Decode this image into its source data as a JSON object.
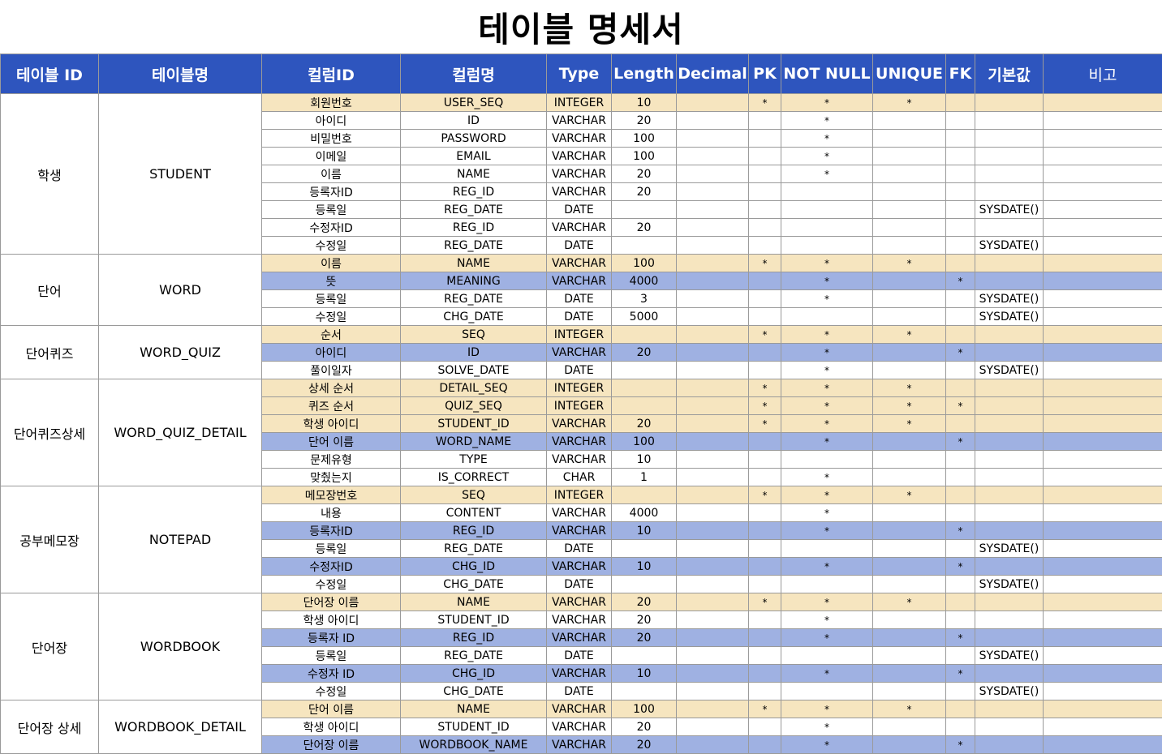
{
  "title": "테이블 명세서",
  "headers": {
    "table_id": "테이블 ID",
    "table_name": "테이블명",
    "column_id": "컬럼ID",
    "column_name": "컬럼명",
    "type": "Type",
    "length": "Length",
    "decimal": "Decimal",
    "pk": "PK",
    "not_null": "NOT NULL",
    "unique": "UNIQUE",
    "fk": "FK",
    "default": "기본값",
    "note": "비고"
  },
  "colors": {
    "header_bg": "#2e55be",
    "pk_row": "#f6e5bf",
    "fk_row": "#9fb1e2"
  },
  "tables": [
    {
      "table_id": "학생",
      "table_name": "STUDENT",
      "rows": [
        {
          "kind": "pk",
          "cid": "회원번호",
          "cname": "USER_SEQ",
          "type": "INTEGER",
          "length": "10",
          "decimal": "",
          "pk": "*",
          "nn": "*",
          "uq": "*",
          "fk": "",
          "def": "",
          "note": ""
        },
        {
          "kind": "plain",
          "cid": "아이디",
          "cname": "ID",
          "type": "VARCHAR",
          "length": "20",
          "decimal": "",
          "pk": "",
          "nn": "*",
          "uq": "",
          "fk": "",
          "def": "",
          "note": ""
        },
        {
          "kind": "plain",
          "cid": "비밀번호",
          "cname": "PASSWORD",
          "type": "VARCHAR",
          "length": "100",
          "decimal": "",
          "pk": "",
          "nn": "*",
          "uq": "",
          "fk": "",
          "def": "",
          "note": ""
        },
        {
          "kind": "plain",
          "cid": "이메일",
          "cname": "EMAIL",
          "type": "VARCHAR",
          "length": "100",
          "decimal": "",
          "pk": "",
          "nn": "*",
          "uq": "",
          "fk": "",
          "def": "",
          "note": ""
        },
        {
          "kind": "plain",
          "cid": "이름",
          "cname": "NAME",
          "type": "VARCHAR",
          "length": "20",
          "decimal": "",
          "pk": "",
          "nn": "*",
          "uq": "",
          "fk": "",
          "def": "",
          "note": ""
        },
        {
          "kind": "plain",
          "cid": "등록자ID",
          "cname": "REG_ID",
          "type": "VARCHAR",
          "length": "20",
          "decimal": "",
          "pk": "",
          "nn": "",
          "uq": "",
          "fk": "",
          "def": "",
          "note": ""
        },
        {
          "kind": "plain",
          "cid": "등록일",
          "cname": "REG_DATE",
          "type": "DATE",
          "length": "",
          "decimal": "",
          "pk": "",
          "nn": "",
          "uq": "",
          "fk": "",
          "def": "SYSDATE()",
          "note": ""
        },
        {
          "kind": "plain",
          "cid": "수정자ID",
          "cname": "REG_ID",
          "type": "VARCHAR",
          "length": "20",
          "decimal": "",
          "pk": "",
          "nn": "",
          "uq": "",
          "fk": "",
          "def": "",
          "note": ""
        },
        {
          "kind": "plain",
          "cid": "수정일",
          "cname": "REG_DATE",
          "type": "DATE",
          "length": "",
          "decimal": "",
          "pk": "",
          "nn": "",
          "uq": "",
          "fk": "",
          "def": "SYSDATE()",
          "note": ""
        }
      ]
    },
    {
      "table_id": "단어",
      "table_name": "WORD",
      "rows": [
        {
          "kind": "pk",
          "cid": "이름",
          "cname": "NAME",
          "type": "VARCHAR",
          "length": "100",
          "decimal": "",
          "pk": "*",
          "nn": "*",
          "uq": "*",
          "fk": "",
          "def": "",
          "note": ""
        },
        {
          "kind": "fk",
          "cid": "뜻",
          "cname": "MEANING",
          "type": "VARCHAR",
          "length": "4000",
          "decimal": "",
          "pk": "",
          "nn": "*",
          "uq": "",
          "fk": "*",
          "def": "",
          "note": ""
        },
        {
          "kind": "plain",
          "cid": "등록일",
          "cname": "REG_DATE",
          "type": "DATE",
          "length": "3",
          "decimal": "",
          "pk": "",
          "nn": "*",
          "uq": "",
          "fk": "",
          "def": "SYSDATE()",
          "note": ""
        },
        {
          "kind": "plain",
          "cid": "수정일",
          "cname": "CHG_DATE",
          "type": "DATE",
          "length": "5000",
          "decimal": "",
          "pk": "",
          "nn": "",
          "uq": "",
          "fk": "",
          "def": "SYSDATE()",
          "note": ""
        }
      ]
    },
    {
      "table_id": "단어퀴즈",
      "table_name": "WORD_QUIZ",
      "rows": [
        {
          "kind": "pk",
          "cid": "순서",
          "cname": "SEQ",
          "type": "INTEGER",
          "length": "",
          "decimal": "",
          "pk": "*",
          "nn": "*",
          "uq": "*",
          "fk": "",
          "def": "",
          "note": ""
        },
        {
          "kind": "fk",
          "cid": "아이디",
          "cname": "ID",
          "type": "VARCHAR",
          "length": "20",
          "decimal": "",
          "pk": "",
          "nn": "*",
          "uq": "",
          "fk": "*",
          "def": "",
          "note": ""
        },
        {
          "kind": "plain",
          "cid": "풀이일자",
          "cname": "SOLVE_DATE",
          "type": "DATE",
          "length": "",
          "decimal": "",
          "pk": "",
          "nn": "*",
          "uq": "",
          "fk": "",
          "def": "SYSDATE()",
          "note": ""
        }
      ]
    },
    {
      "table_id": "단어퀴즈상세",
      "table_name": "WORD_QUIZ_DETAIL",
      "rows": [
        {
          "kind": "pk",
          "cid": "상세 순서",
          "cname": "DETAIL_SEQ",
          "type": "INTEGER",
          "length": "",
          "decimal": "",
          "pk": "*",
          "nn": "*",
          "uq": "*",
          "fk": "",
          "def": "",
          "note": ""
        },
        {
          "kind": "pk",
          "cid": "퀴즈 순서",
          "cname": "QUIZ_SEQ",
          "type": "INTEGER",
          "length": "",
          "decimal": "",
          "pk": "*",
          "nn": "*",
          "uq": "*",
          "fk": "*",
          "def": "",
          "note": ""
        },
        {
          "kind": "pk",
          "cid": "학생 아이디",
          "cname": "STUDENT_ID",
          "type": "VARCHAR",
          "length": "20",
          "decimal": "",
          "pk": "*",
          "nn": "*",
          "uq": "*",
          "fk": "",
          "def": "",
          "note": ""
        },
        {
          "kind": "fk",
          "cid": "단어 이름",
          "cname": "WORD_NAME",
          "type": "VARCHAR",
          "length": "100",
          "decimal": "",
          "pk": "",
          "nn": "*",
          "uq": "",
          "fk": "*",
          "def": "",
          "note": ""
        },
        {
          "kind": "plain",
          "cid": "문제유형",
          "cname": "TYPE",
          "type": "VARCHAR",
          "length": "10",
          "decimal": "",
          "pk": "",
          "nn": "",
          "uq": "",
          "fk": "",
          "def": "",
          "note": ""
        },
        {
          "kind": "plain",
          "cid": "맞췄는지",
          "cname": "IS_CORRECT",
          "type": "CHAR",
          "length": "1",
          "decimal": "",
          "pk": "",
          "nn": "*",
          "uq": "",
          "fk": "",
          "def": "",
          "note": ""
        }
      ]
    },
    {
      "table_id": "공부메모장",
      "table_name": "NOTEPAD",
      "rows": [
        {
          "kind": "pk",
          "cid": "메모장번호",
          "cname": "SEQ",
          "type": "INTEGER",
          "length": "",
          "decimal": "",
          "pk": "*",
          "nn": "*",
          "uq": "*",
          "fk": "",
          "def": "",
          "note": ""
        },
        {
          "kind": "plain",
          "cid": "내용",
          "cname": "CONTENT",
          "type": "VARCHAR",
          "length": "4000",
          "decimal": "",
          "pk": "",
          "nn": "*",
          "uq": "",
          "fk": "",
          "def": "",
          "note": ""
        },
        {
          "kind": "fk",
          "cid": "등록자ID",
          "cname": "REG_ID",
          "type": "VARCHAR",
          "length": "10",
          "decimal": "",
          "pk": "",
          "nn": "*",
          "uq": "",
          "fk": "*",
          "def": "",
          "note": ""
        },
        {
          "kind": "plain",
          "cid": "등록일",
          "cname": "REG_DATE",
          "type": "DATE",
          "length": "",
          "decimal": "",
          "pk": "",
          "nn": "",
          "uq": "",
          "fk": "",
          "def": "SYSDATE()",
          "note": ""
        },
        {
          "kind": "fk",
          "cid": "수정자ID",
          "cname": "CHG_ID",
          "type": "VARCHAR",
          "length": "10",
          "decimal": "",
          "pk": "",
          "nn": "*",
          "uq": "",
          "fk": "*",
          "def": "",
          "note": ""
        },
        {
          "kind": "plain",
          "cid": "수정일",
          "cname": "CHG_DATE",
          "type": "DATE",
          "length": "",
          "decimal": "",
          "pk": "",
          "nn": "",
          "uq": "",
          "fk": "",
          "def": "SYSDATE()",
          "note": ""
        }
      ]
    },
    {
      "table_id": "단어장",
      "table_name": "WORDBOOK",
      "rows": [
        {
          "kind": "pk",
          "cid": "단어장 이름",
          "cname": "NAME",
          "type": "VARCHAR",
          "length": "20",
          "decimal": "",
          "pk": "*",
          "nn": "*",
          "uq": "*",
          "fk": "",
          "def": "",
          "note": ""
        },
        {
          "kind": "plain",
          "cid": "학생 아이디",
          "cname": "STUDENT_ID",
          "type": "VARCHAR",
          "length": "20",
          "decimal": "",
          "pk": "",
          "nn": "*",
          "uq": "",
          "fk": "",
          "def": "",
          "note": ""
        },
        {
          "kind": "fk",
          "cid": "등록자 ID",
          "cname": "REG_ID",
          "type": "VARCHAR",
          "length": "20",
          "decimal": "",
          "pk": "",
          "nn": "*",
          "uq": "",
          "fk": "*",
          "def": "",
          "note": ""
        },
        {
          "kind": "plain",
          "cid": "등록일",
          "cname": "REG_DATE",
          "type": "DATE",
          "length": "",
          "decimal": "",
          "pk": "",
          "nn": "",
          "uq": "",
          "fk": "",
          "def": "SYSDATE()",
          "note": ""
        },
        {
          "kind": "fk",
          "cid": "수정자 ID",
          "cname": "CHG_ID",
          "type": "VARCHAR",
          "length": "10",
          "decimal": "",
          "pk": "",
          "nn": "*",
          "uq": "",
          "fk": "*",
          "def": "",
          "note": ""
        },
        {
          "kind": "plain",
          "cid": "수정일",
          "cname": "CHG_DATE",
          "type": "DATE",
          "length": "",
          "decimal": "",
          "pk": "",
          "nn": "",
          "uq": "",
          "fk": "",
          "def": "SYSDATE()",
          "note": ""
        }
      ]
    },
    {
      "table_id": "단어장 상세",
      "table_name": "WORDBOOK_DETAIL",
      "rows": [
        {
          "kind": "pk",
          "cid": "단어 이름",
          "cname": "NAME",
          "type": "VARCHAR",
          "length": "100",
          "decimal": "",
          "pk": "*",
          "nn": "*",
          "uq": "*",
          "fk": "",
          "def": "",
          "note": ""
        },
        {
          "kind": "plain",
          "cid": "학생 아이디",
          "cname": "STUDENT_ID",
          "type": "VARCHAR",
          "length": "20",
          "decimal": "",
          "pk": "",
          "nn": "*",
          "uq": "",
          "fk": "",
          "def": "",
          "note": ""
        },
        {
          "kind": "fk",
          "cid": "단어장 이름",
          "cname": "WORDBOOK_NAME",
          "type": "VARCHAR",
          "length": "20",
          "decimal": "",
          "pk": "",
          "nn": "*",
          "uq": "",
          "fk": "*",
          "def": "",
          "note": ""
        }
      ]
    }
  ]
}
